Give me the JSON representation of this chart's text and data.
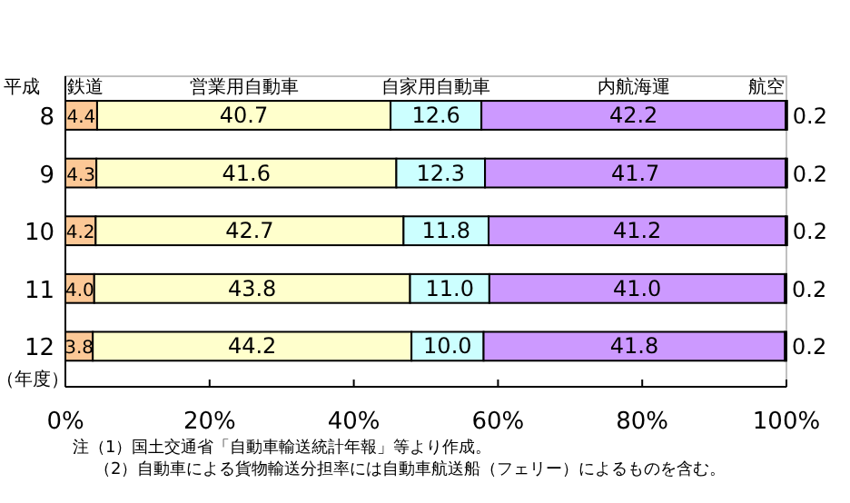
{
  "chart_data": {
    "type": "bar",
    "orientation": "horizontal",
    "stacked": true,
    "ylabel": "平成",
    "categories": [
      "8",
      "9",
      "10",
      "11",
      "12"
    ],
    "series": [
      {
        "name": "鉄道",
        "color": "#fcc896",
        "values": [
          4.4,
          4.3,
          4.2,
          4.0,
          3.8
        ],
        "value_labels": [
          "4.4",
          "4.3",
          "4.2",
          "4.0",
          "3.8"
        ]
      },
      {
        "name": "営業用自動車",
        "color": "#ffffcc",
        "values": [
          40.7,
          41.6,
          42.7,
          43.8,
          44.2
        ],
        "value_labels": [
          "40.7",
          "41.6",
          "42.7",
          "43.8",
          "44.2"
        ]
      },
      {
        "name": "自家用自動車",
        "color": "#ccffff",
        "values": [
          12.6,
          12.3,
          11.8,
          11.0,
          10.0
        ],
        "value_labels": [
          "12.6",
          "12.3",
          "11.8",
          "11.0",
          "10.0"
        ]
      },
      {
        "name": "内航海運",
        "color": "#cc99ff",
        "values": [
          42.2,
          41.7,
          41.2,
          41.0,
          41.8
        ],
        "value_labels": [
          "42.2",
          "41.7",
          "41.2",
          "41.0",
          "41.8"
        ]
      },
      {
        "name": "航空",
        "color": "#000000",
        "values": [
          0.2,
          0.2,
          0.2,
          0.2,
          0.2
        ],
        "value_labels": [
          "0.2",
          "0.2",
          "0.2",
          "0.2",
          "0.2"
        ]
      }
    ],
    "xlim": [
      0,
      100
    ],
    "xticks": [
      {
        "value": 0,
        "label": "0%"
      },
      {
        "value": 20,
        "label": "20%"
      },
      {
        "value": 40,
        "label": "40%"
      },
      {
        "value": 60,
        "label": "60%"
      },
      {
        "value": 80,
        "label": "80%"
      },
      {
        "value": 100,
        "label": "100%"
      }
    ],
    "legend": false,
    "grid": false,
    "annotations": [
      "（年度）",
      "注（1）国土交通省「自動車輸送統計年報」等より作成。",
      "（2）自動車による貨物輸送分担率には自動車航送船（フェリー）によるものを含む。"
    ]
  }
}
